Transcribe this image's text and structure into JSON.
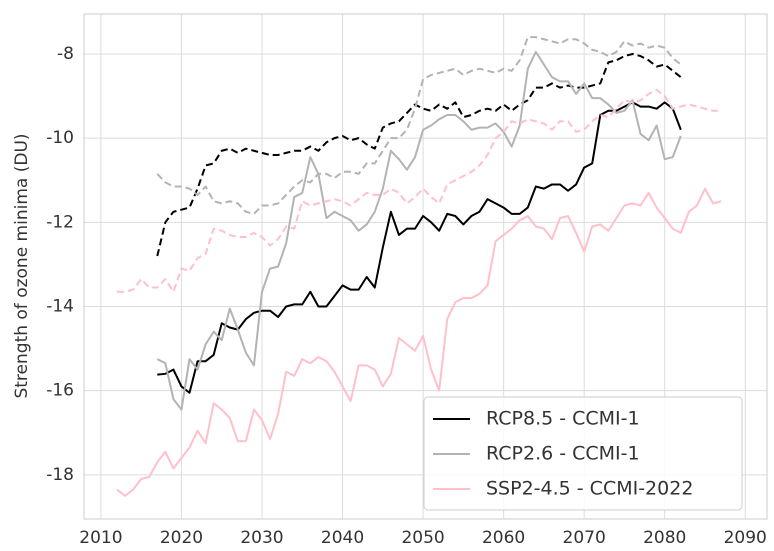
{
  "chart_data": {
    "type": "line",
    "ylabel": "Strength of ozone minima (DU)",
    "x": [
      2012,
      2013,
      2014,
      2015,
      2016,
      2017,
      2018,
      2019,
      2020,
      2021,
      2022,
      2023,
      2024,
      2025,
      2026,
      2027,
      2028,
      2029,
      2030,
      2031,
      2032,
      2033,
      2034,
      2035,
      2036,
      2037,
      2038,
      2039,
      2040,
      2041,
      2042,
      2043,
      2044,
      2045,
      2046,
      2047,
      2048,
      2049,
      2050,
      2051,
      2052,
      2053,
      2054,
      2055,
      2056,
      2057,
      2058,
      2059,
      2060,
      2061,
      2062,
      2063,
      2064,
      2065,
      2066,
      2067,
      2068,
      2069,
      2070,
      2071,
      2072,
      2073,
      2074,
      2075,
      2076,
      2077,
      2078,
      2079,
      2080,
      2081,
      2082,
      2083,
      2084,
      2085,
      2086,
      2087
    ],
    "series": [
      {
        "name": "RCP8.5 - CCMI-1",
        "color": "#000000",
        "dash": false,
        "values": [
          null,
          null,
          null,
          null,
          null,
          -15.62,
          -15.6,
          -15.5,
          -15.9,
          -16.05,
          -15.3,
          -15.3,
          -15.15,
          -14.4,
          -14.5,
          -14.55,
          -14.3,
          -14.15,
          -14.1,
          -14.1,
          -14.25,
          -14.0,
          -13.95,
          -13.95,
          -13.65,
          -14.0,
          -14.0,
          -13.75,
          -13.5,
          -13.6,
          -13.6,
          -13.3,
          -13.55,
          -12.6,
          -11.75,
          -12.3,
          -12.15,
          -12.15,
          -11.85,
          -12.0,
          -12.2,
          -11.8,
          -11.85,
          -12.05,
          -11.85,
          -11.75,
          -11.45,
          -11.55,
          -11.65,
          -11.8,
          -11.8,
          -11.65,
          -11.15,
          -11.2,
          -11.1,
          -11.1,
          -11.25,
          -11.1,
          -10.7,
          -10.6,
          -9.45,
          -9.35,
          -9.35,
          -9.25,
          -9.15,
          -9.25,
          -9.25,
          -9.3,
          -9.15,
          -9.3,
          -9.8,
          null,
          null,
          null,
          null,
          null
        ]
      },
      {
        "color": "#000000",
        "dash": true,
        "values": [
          null,
          null,
          null,
          null,
          null,
          -12.8,
          -12.0,
          -11.75,
          -11.7,
          -11.65,
          -11.2,
          -10.65,
          -10.6,
          -10.3,
          -10.25,
          -10.35,
          -10.25,
          -10.3,
          -10.35,
          -10.4,
          -10.4,
          -10.35,
          -10.3,
          -10.3,
          -10.2,
          -10.3,
          -10.1,
          -10.0,
          -9.95,
          -10.05,
          -10.0,
          -10.15,
          -10.25,
          -9.75,
          -9.65,
          -9.6,
          -9.4,
          -9.2,
          -9.3,
          -9.35,
          -9.2,
          -9.3,
          -9.15,
          -9.5,
          -9.45,
          -9.35,
          -9.3,
          -9.35,
          -9.2,
          -9.35,
          -9.2,
          -9.1,
          -8.8,
          -8.8,
          -8.7,
          -8.8,
          -8.75,
          -8.8,
          -8.8,
          -8.75,
          -8.7,
          -8.2,
          -8.15,
          -8.05,
          -8.0,
          -8.05,
          -8.15,
          -8.3,
          -8.25,
          -8.4,
          -8.55,
          null,
          null,
          null,
          null,
          null
        ]
      },
      {
        "name": "RCP2.6 - CCMI-1",
        "color": "#b3b3b3",
        "dash": false,
        "values": [
          null,
          null,
          null,
          null,
          null,
          -15.25,
          -15.35,
          -16.2,
          -16.45,
          -15.25,
          -15.5,
          -14.9,
          -14.6,
          -14.8,
          -14.05,
          -14.55,
          -15.1,
          -15.4,
          -13.65,
          -13.1,
          -13.05,
          -12.5,
          -11.4,
          -11.3,
          -10.45,
          -10.85,
          -11.9,
          -11.75,
          -11.85,
          -11.95,
          -12.2,
          -12.05,
          -11.75,
          -11.2,
          -10.3,
          -10.5,
          -10.75,
          -10.45,
          -9.8,
          -9.7,
          -9.55,
          -9.45,
          -9.45,
          -9.6,
          -9.8,
          -9.75,
          -9.75,
          -9.65,
          -9.85,
          -10.2,
          -9.7,
          -8.35,
          -7.95,
          -8.25,
          -8.55,
          -8.65,
          -8.65,
          -8.95,
          -8.7,
          -9.05,
          -9.05,
          -9.2,
          -9.4,
          -9.35,
          -9.1,
          -9.9,
          -10.05,
          -9.7,
          -10.5,
          -10.45,
          -9.95,
          null,
          null,
          null,
          null,
          null
        ]
      },
      {
        "color": "#b3b3b3",
        "dash": true,
        "values": [
          null,
          null,
          null,
          null,
          null,
          -10.85,
          -11.05,
          -11.15,
          -11.15,
          -11.2,
          -11.35,
          -11.15,
          -11.5,
          -11.55,
          -11.5,
          -11.55,
          -11.75,
          -11.8,
          -11.6,
          -11.6,
          -11.55,
          -11.35,
          -11.15,
          -11.0,
          -11.05,
          -10.85,
          -10.85,
          -10.95,
          -10.8,
          -10.8,
          -10.85,
          -10.6,
          -10.6,
          -10.3,
          -10.0,
          -10.0,
          -9.8,
          -9.3,
          -8.6,
          -8.5,
          -8.45,
          -8.4,
          -8.35,
          -8.5,
          -8.4,
          -8.35,
          -8.4,
          -8.45,
          -8.35,
          -8.4,
          -8.15,
          -7.6,
          -7.6,
          -7.65,
          -7.7,
          -7.75,
          -7.65,
          -7.65,
          -7.75,
          -7.9,
          -7.95,
          -8.05,
          -7.95,
          -7.7,
          -7.8,
          -7.75,
          -7.85,
          -7.8,
          -7.85,
          -8.1,
          -8.25,
          null,
          null,
          null,
          null,
          null
        ]
      },
      {
        "name": "SSP2-4.5 - CCMI-2022",
        "color": "#ffc0cb",
        "dash": false,
        "values": [
          -18.35,
          -18.5,
          -18.35,
          -18.1,
          -18.05,
          -17.7,
          -17.45,
          -17.85,
          -17.6,
          -17.35,
          -16.95,
          -17.25,
          -16.3,
          -16.45,
          -16.65,
          -17.2,
          -17.2,
          -16.45,
          -16.7,
          -17.15,
          -16.55,
          -15.55,
          -15.65,
          -15.25,
          -15.35,
          -15.2,
          -15.3,
          -15.55,
          -15.9,
          -16.25,
          -15.4,
          -15.4,
          -15.5,
          -15.9,
          -15.6,
          -14.75,
          -14.9,
          -15.05,
          -14.7,
          -15.5,
          -16.0,
          -14.3,
          -13.9,
          -13.8,
          -13.8,
          -13.7,
          -13.5,
          -12.45,
          -12.3,
          -12.15,
          -11.95,
          -11.85,
          -12.1,
          -12.15,
          -12.4,
          -11.9,
          -11.85,
          -12.25,
          -12.7,
          -12.1,
          -12.05,
          -12.2,
          -11.9,
          -11.6,
          -11.55,
          -11.6,
          -11.3,
          -11.65,
          -11.9,
          -12.15,
          -12.25,
          -11.75,
          -11.6,
          -11.2,
          -11.55,
          -11.5
        ]
      },
      {
        "color": "#ffc0cb",
        "dash": true,
        "values": [
          -13.65,
          -13.65,
          -13.6,
          -13.35,
          -13.55,
          -13.55,
          -13.35,
          -13.65,
          -13.1,
          -13.15,
          -12.85,
          -12.75,
          -12.15,
          -12.2,
          -12.3,
          -12.35,
          -12.35,
          -12.25,
          -12.35,
          -12.55,
          -12.4,
          -12.1,
          -12.15,
          -11.5,
          -11.6,
          -11.55,
          -11.5,
          -11.45,
          -11.5,
          -11.6,
          -11.45,
          -11.3,
          -11.35,
          -11.35,
          -11.2,
          -11.3,
          -11.55,
          -11.4,
          -11.2,
          -11.4,
          -11.55,
          -11.1,
          -11.0,
          -10.9,
          -10.8,
          -10.65,
          -10.4,
          -10.0,
          -9.85,
          -9.6,
          -9.65,
          -9.55,
          -9.6,
          -9.65,
          -9.8,
          -9.6,
          -9.6,
          -9.85,
          -9.8,
          -9.6,
          -9.45,
          -9.5,
          -9.3,
          -9.1,
          -9.15,
          -9.1,
          -8.95,
          -8.85,
          -9.0,
          -9.3,
          -9.25,
          -9.2,
          -9.25,
          -9.3,
          -9.35,
          -9.35
        ]
      }
    ],
    "xlim": [
      2007.9,
      2092.7
    ],
    "ylim": [
      -19.05,
      -7.05
    ],
    "xticks": [
      2010,
      2020,
      2030,
      2040,
      2050,
      2060,
      2070,
      2080,
      2090
    ],
    "yticks": [
      -18,
      -16,
      -14,
      -12,
      -10,
      -8
    ],
    "grid": true,
    "legend": "lower right"
  }
}
